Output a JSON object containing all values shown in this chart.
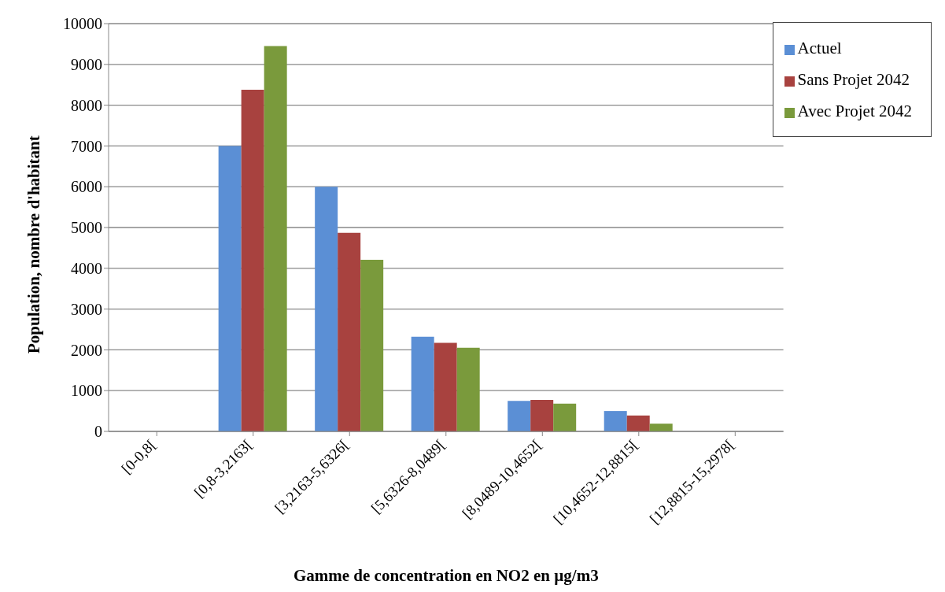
{
  "chart_data": {
    "type": "bar",
    "xlabel": "Gamme de concentration en NO2 en µg/m3",
    "ylabel": "Population, nombre d'habitant",
    "categories": [
      "[0-0,8[",
      "[0,8-3,2163[",
      "[3,2163-5,6326[",
      "[5,6326-8,0489[",
      "[8,0489-10,4652[",
      "[10,4652-12,8815[",
      "[12,8815-15,2978["
    ],
    "series": [
      {
        "name": "Actuel",
        "color": "#5b8fd5",
        "values": [
          0,
          7000,
          6000,
          2320,
          750,
          500,
          0
        ]
      },
      {
        "name": "Sans Projet 2042",
        "color": "#a8423f",
        "values": [
          0,
          8380,
          4870,
          2170,
          770,
          390,
          0
        ]
      },
      {
        "name": "Avec Projet 2042",
        "color": "#7a9a3c",
        "values": [
          0,
          9450,
          4210,
          2050,
          680,
          190,
          0
        ]
      }
    ],
    "ylim": [
      0,
      10000
    ],
    "yticks": [
      0,
      1000,
      2000,
      3000,
      4000,
      5000,
      6000,
      7000,
      8000,
      9000,
      10000
    ],
    "grid": "y",
    "legend": "top right"
  }
}
